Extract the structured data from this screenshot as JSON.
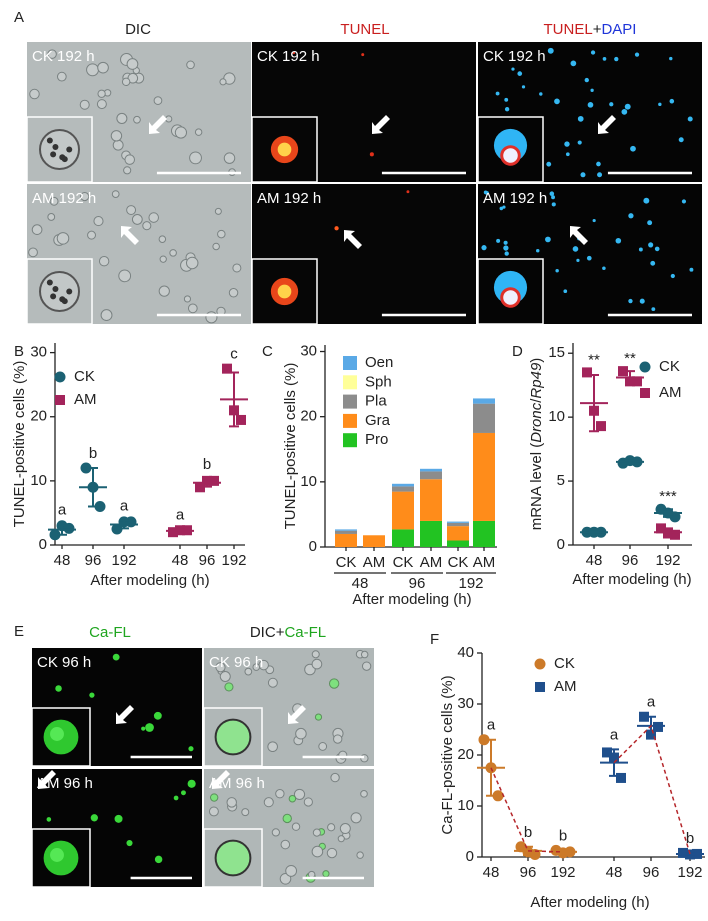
{
  "panel_labels": [
    "A",
    "B",
    "C",
    "D",
    "E",
    "F"
  ],
  "panel_a": {
    "headers": [
      [
        {
          "text": "DIC",
          "color": "#222222"
        }
      ],
      [
        {
          "text": "TUNEL",
          "color": "#c91f1f"
        }
      ],
      [
        {
          "text": "TUNEL",
          "color": "#c91f1f"
        },
        {
          "text": "+",
          "color": "#222222"
        },
        {
          "text": "DAPI",
          "color": "#1f35d9"
        }
      ]
    ],
    "row_labels": [
      "CK 192 h",
      "AM 192 h"
    ]
  },
  "panel_e": {
    "headers": [
      [
        {
          "text": "Ca-FL",
          "color": "#1fa51f"
        }
      ],
      [
        {
          "text": "DIC",
          "color": "#222222"
        },
        {
          "text": "+",
          "color": "#222222"
        },
        {
          "text": "Ca-FL",
          "color": "#1fa51f"
        }
      ]
    ],
    "row_labels": [
      "CK 96 h",
      "AM 96 h"
    ]
  },
  "chart_data": [
    {
      "type": "dotplot",
      "ylabel": "TUNEL-positive cells (%)",
      "xlabel": "After modeling (h)",
      "categories": [
        "48",
        "96",
        "192",
        "48",
        "96",
        "192"
      ],
      "ylim": [
        0,
        31.5
      ],
      "yticks": [
        0,
        10,
        20,
        30
      ],
      "legend": "upper left",
      "series": [
        {
          "name": "CK",
          "color": "#1b6173",
          "marker": "circle",
          "points": [
            [
              1.6,
              3.0,
              2.6
            ],
            [
              12,
              9,
              6
            ],
            [
              2.5,
              3.6,
              3.6
            ],
            null,
            null,
            null
          ],
          "mean": [
            2.4,
            9,
            3.2,
            null,
            null,
            null
          ],
          "error": [
            0.8,
            3.0,
            0.6,
            null,
            null,
            null
          ]
        },
        {
          "name": "AM",
          "color": "#a3245b",
          "marker": "square",
          "points": [
            null,
            null,
            null,
            [
              2.0,
              2.3,
              2.3
            ],
            [
              9.0,
              10.0,
              10.0
            ],
            [
              27.5,
              21.0,
              19.5
            ]
          ],
          "mean": [
            null,
            null,
            null,
            2.2,
            9.7,
            22.7
          ],
          "error": [
            null,
            null,
            null,
            0.2,
            0.6,
            4.2
          ]
        }
      ],
      "annotations": [
        "a",
        "b",
        "a",
        "a",
        "b",
        "c"
      ]
    },
    {
      "type": "stacked_bar",
      "ylabel": "TUNEL-positive cells (%)",
      "xlabel": "After modeling (h)",
      "categories": [
        "CK",
        "AM",
        "CK",
        "AM",
        "CK",
        "AM"
      ],
      "groups": [
        "48",
        "96",
        "192"
      ],
      "ylim": [
        0,
        31
      ],
      "yticks": [
        0,
        10,
        20,
        30
      ],
      "legend": "upper left",
      "series": [
        {
          "name": "Oen",
          "color": "#5aa9e6",
          "values": [
            0.2,
            0,
            0.4,
            0.4,
            0.2,
            0.8
          ]
        },
        {
          "name": "Sph",
          "color": "#ffff99",
          "values": [
            0,
            0,
            0,
            0,
            0,
            0
          ]
        },
        {
          "name": "Pla",
          "color": "#8c8c8c",
          "values": [
            0.5,
            0,
            0.8,
            1.2,
            0.5,
            4.5
          ]
        },
        {
          "name": "Gra",
          "color": "#ff8c1a",
          "values": [
            2.0,
            1.8,
            5.8,
            6.4,
            2.2,
            13.5
          ]
        },
        {
          "name": "Pro",
          "color": "#22c322",
          "values": [
            0,
            0,
            2.7,
            4.0,
            1.0,
            4.0
          ]
        }
      ]
    },
    {
      "type": "dotplot",
      "ylabel": [
        "mRNA level (",
        "Dronc",
        "/",
        "Rp49",
        ")"
      ],
      "ylabel_italic": [
        false,
        true,
        false,
        true,
        false
      ],
      "xlabel": "After modeling (h)",
      "categories": [
        "48",
        "96",
        "192"
      ],
      "ylim": [
        0,
        15.8
      ],
      "yticks": [
        0,
        5,
        10,
        15
      ],
      "legend": "upper right",
      "series": [
        {
          "name": "CK",
          "color": "#1b6173",
          "marker": "circle",
          "points": [
            [
              1,
              1,
              1
            ],
            [
              6.4,
              6.6,
              6.5
            ],
            [
              2.8,
              2.5,
              2.2
            ]
          ],
          "mean": [
            1,
            6.5,
            2.5
          ],
          "error": [
            0.05,
            0.1,
            0.3
          ]
        },
        {
          "name": "AM",
          "color": "#a3245b",
          "marker": "square",
          "points": [
            [
              13.5,
              10.5,
              9.3
            ],
            [
              13.6,
              12.8,
              12.8
            ],
            [
              1.3,
              0.9,
              0.8
            ]
          ],
          "mean": [
            11.1,
            13.1,
            1.0
          ],
          "error": [
            2.2,
            0.5,
            0.3
          ]
        }
      ],
      "annotations": [
        "**",
        "**",
        "***"
      ]
    },
    {
      "type": "dotplot",
      "ylabel": "Ca-FL-positive cells (%)",
      "xlabel": "After modeling (h)",
      "categories": [
        "48",
        "96",
        "192",
        "48",
        "96",
        "192"
      ],
      "ylim": [
        0,
        40
      ],
      "yticks": [
        0,
        10,
        20,
        30,
        40
      ],
      "legend": "upper center",
      "connect_means": true,
      "connector_color": "#b5262a",
      "series": [
        {
          "name": "CK",
          "color": "#cc7a29",
          "marker": "circle",
          "points": [
            [
              23,
              17.5,
              12
            ],
            [
              2.0,
              1.0,
              0.5
            ],
            [
              1.3,
              0.8,
              1.0
            ],
            null,
            null,
            null
          ],
          "mean": [
            17.5,
            1.2,
            1.0,
            null,
            null,
            null
          ],
          "error": [
            5.5,
            0.8,
            0.3,
            null,
            null,
            null
          ]
        },
        {
          "name": "AM",
          "color": "#1f4f8c",
          "marker": "square",
          "points": [
            null,
            null,
            null,
            [
              20.5,
              19.5,
              15.5
            ],
            [
              27.5,
              24,
              25.5
            ],
            [
              0.8,
              0.5,
              0.6
            ]
          ],
          "mean": [
            null,
            null,
            null,
            18.5,
            25.7,
            0.6
          ],
          "error": [
            null,
            null,
            null,
            2.6,
            1.8,
            0.15
          ]
        }
      ],
      "annotations": [
        "a",
        "b",
        "b",
        "a",
        "a",
        "b"
      ]
    }
  ]
}
